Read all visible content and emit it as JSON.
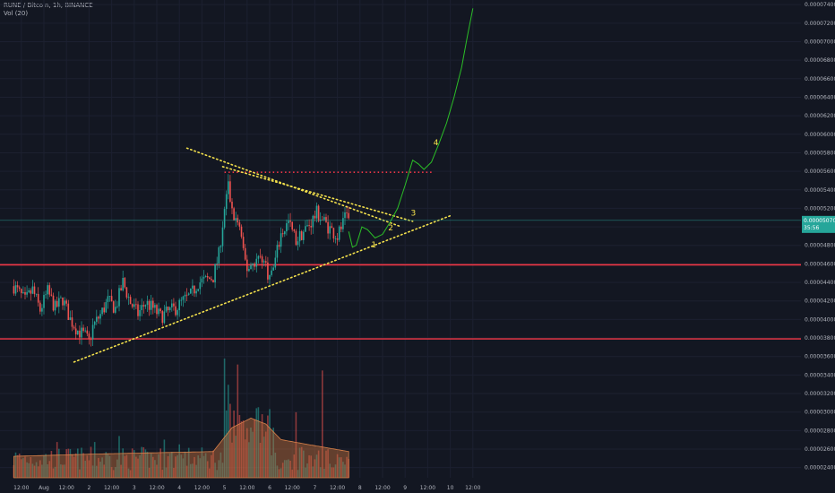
{
  "header": {
    "symbol_line": "RUNE / Bitcoin, 1h, BINANCE",
    "volume_line": "Vol (20)"
  },
  "colors": {
    "background": "#131722",
    "up": "#26a69a",
    "down": "#ef5350",
    "level": "#f23645",
    "trend_dots": "#f5e24c",
    "projection": "#2bbf27",
    "grid": "#1c2030",
    "volume_ma": "#c6703d"
  },
  "chart_data": {
    "type": "candlestick",
    "title": "RUNE / Bitcoin, 1h, BINANCE",
    "y_axis": {
      "min": 2.3e-05,
      "max": 7.45e-05,
      "side": "right",
      "tick_labels": [
        "0.00002400",
        "0.00002600",
        "0.00002800",
        "0.00003000",
        "0.00003200",
        "0.00003400",
        "0.00003600",
        "0.00003800",
        "0.00004000",
        "0.00004200",
        "0.00004400",
        "0.00004600",
        "0.00004800",
        "0.00005000",
        "0.00005200",
        "0.00005400",
        "0.00005600",
        "0.00005800",
        "0.00006000",
        "0.00006200",
        "0.00006400",
        "0.00006600",
        "0.00006800",
        "0.00007000",
        "0.00007200",
        "0.00007400"
      ],
      "current_price_label": "0.00005070",
      "countdown_label": "35:56",
      "current_price": 5.07e-05
    },
    "x_axis": {
      "tick_labels": [
        {
          "label": "12:00",
          "t": -12
        },
        {
          "label": "Aug",
          "t": 0
        },
        {
          "label": "12:00",
          "t": 12
        },
        {
          "label": "2",
          "t": 24
        },
        {
          "label": "12:00",
          "t": 36
        },
        {
          "label": "3",
          "t": 48
        },
        {
          "label": "12:00",
          "t": 60
        },
        {
          "label": "4",
          "t": 72
        },
        {
          "label": "12:00",
          "t": 84
        },
        {
          "label": "5",
          "t": 96
        },
        {
          "label": "12:00",
          "t": 108
        },
        {
          "label": "6",
          "t": 120
        },
        {
          "label": "12:00",
          "t": 132
        },
        {
          "label": "7",
          "t": 144
        },
        {
          "label": "12:00",
          "t": 156
        },
        {
          "label": "8",
          "t": 168
        },
        {
          "label": "12:00",
          "t": 180
        },
        {
          "label": "9",
          "t": 192
        },
        {
          "label": "12:00",
          "t": 204
        },
        {
          "label": "10",
          "t": 216
        },
        {
          "label": "12:00",
          "t": 228
        }
      ],
      "first_hour": -16,
      "last_hour": 162
    },
    "price_keyframes": [
      [
        -16,
        4.36e-05
      ],
      [
        -10,
        4.2e-05
      ],
      [
        -6,
        4.32e-05
      ],
      [
        -2,
        4.1e-05
      ],
      [
        2,
        4.3e-05
      ],
      [
        6,
        4.12e-05
      ],
      [
        10,
        4.22e-05
      ],
      [
        14,
        4e-05
      ],
      [
        18,
        3.88e-05
      ],
      [
        22,
        3.82e-05
      ],
      [
        24,
        3.75e-05
      ],
      [
        26,
        3.92e-05
      ],
      [
        30,
        4.05e-05
      ],
      [
        34,
        4.2e-05
      ],
      [
        38,
        4.12e-05
      ],
      [
        42,
        4.4e-05
      ],
      [
        46,
        4.18e-05
      ],
      [
        50,
        4.06e-05
      ],
      [
        54,
        4.18e-05
      ],
      [
        58,
        4.12e-05
      ],
      [
        62,
        4.03e-05
      ],
      [
        66,
        4.08e-05
      ],
      [
        70,
        4.12e-05
      ],
      [
        74,
        4.2e-05
      ],
      [
        78,
        4.26e-05
      ],
      [
        82,
        4.4e-05
      ],
      [
        86,
        4.42e-05
      ],
      [
        90,
        4.46e-05
      ],
      [
        93,
        4.7e-05
      ],
      [
        96,
        5.2e-05
      ],
      [
        98,
        5.45e-05
      ],
      [
        100,
        5.15e-05
      ],
      [
        104,
        5e-05
      ],
      [
        106,
        4.7e-05
      ],
      [
        108,
        4.55e-05
      ],
      [
        112,
        4.63e-05
      ],
      [
        116,
        4.68e-05
      ],
      [
        120,
        4.45e-05
      ],
      [
        122,
        4.55e-05
      ],
      [
        126,
        4.92e-05
      ],
      [
        130,
        5.05e-05
      ],
      [
        134,
        4.85e-05
      ],
      [
        138,
        4.95e-05
      ],
      [
        142,
        5.05e-05
      ],
      [
        145,
        5.15e-05
      ],
      [
        148,
        5.08e-05
      ],
      [
        152,
        4.98e-05
      ],
      [
        156,
        4.9e-05
      ],
      [
        160,
        5.08e-05
      ],
      [
        162,
        5.07e-05
      ]
    ],
    "volume": {
      "base_level": 0.18,
      "spikes": [
        [
          96,
          1.0
        ],
        [
          98,
          0.78
        ],
        [
          103,
          0.95
        ],
        [
          99,
          0.62
        ],
        [
          134,
          0.55
        ],
        [
          148,
          0.9
        ],
        [
          122,
          0.42
        ],
        [
          40,
          0.35
        ],
        [
          64,
          0.32
        ],
        [
          72,
          0.28
        ],
        [
          7,
          0.3
        ],
        [
          27,
          0.3
        ]
      ]
    },
    "volume_ma_keyframes": [
      [
        -16,
        0.18
      ],
      [
        30,
        0.2
      ],
      [
        90,
        0.22
      ],
      [
        100,
        0.42
      ],
      [
        110,
        0.5
      ],
      [
        118,
        0.45
      ],
      [
        126,
        0.32
      ],
      [
        140,
        0.28
      ],
      [
        162,
        0.22
      ]
    ],
    "horizontal_levels": [
      4.59e-05,
      3.79e-05,
      5.59e-05
    ],
    "trendlines": [
      {
        "from": [
          16,
          3.54e-05
        ],
        "to": [
          216,
          5.12e-05
        ]
      },
      {
        "from": [
          76,
          5.85e-05
        ],
        "to": [
          190,
          5e-05
        ]
      },
      {
        "from": [
          95,
          5.65e-05
        ],
        "to": [
          196,
          5.06e-05
        ]
      }
    ],
    "projection": [
      [
        162,
        4.95e-05
      ],
      [
        164,
        4.78e-05
      ],
      [
        166,
        4.8e-05
      ],
      [
        169,
        5e-05
      ],
      [
        172,
        4.97e-05
      ],
      [
        176,
        4.88e-05
      ],
      [
        180,
        4.92e-05
      ],
      [
        184,
        5.05e-05
      ],
      [
        188,
        5.2e-05
      ],
      [
        192,
        5.45e-05
      ],
      [
        196,
        5.72e-05
      ],
      [
        199,
        5.68e-05
      ],
      [
        202,
        5.62e-05
      ],
      [
        206,
        5.7e-05
      ],
      [
        210,
        5.9e-05
      ],
      [
        214,
        6.12e-05
      ],
      [
        218,
        6.4e-05
      ],
      [
        222,
        6.72e-05
      ],
      [
        225,
        7.05e-05
      ],
      [
        228,
        7.36e-05
      ]
    ],
    "wave_labels": [
      {
        "label": "1",
        "t": 174,
        "v": 4.78e-05
      },
      {
        "label": "2",
        "t": 183,
        "v": 4.96e-05
      },
      {
        "label": "3",
        "t": 195,
        "v": 5.12e-05
      },
      {
        "label": "4",
        "t": 207,
        "v": 5.88e-05
      }
    ]
  }
}
